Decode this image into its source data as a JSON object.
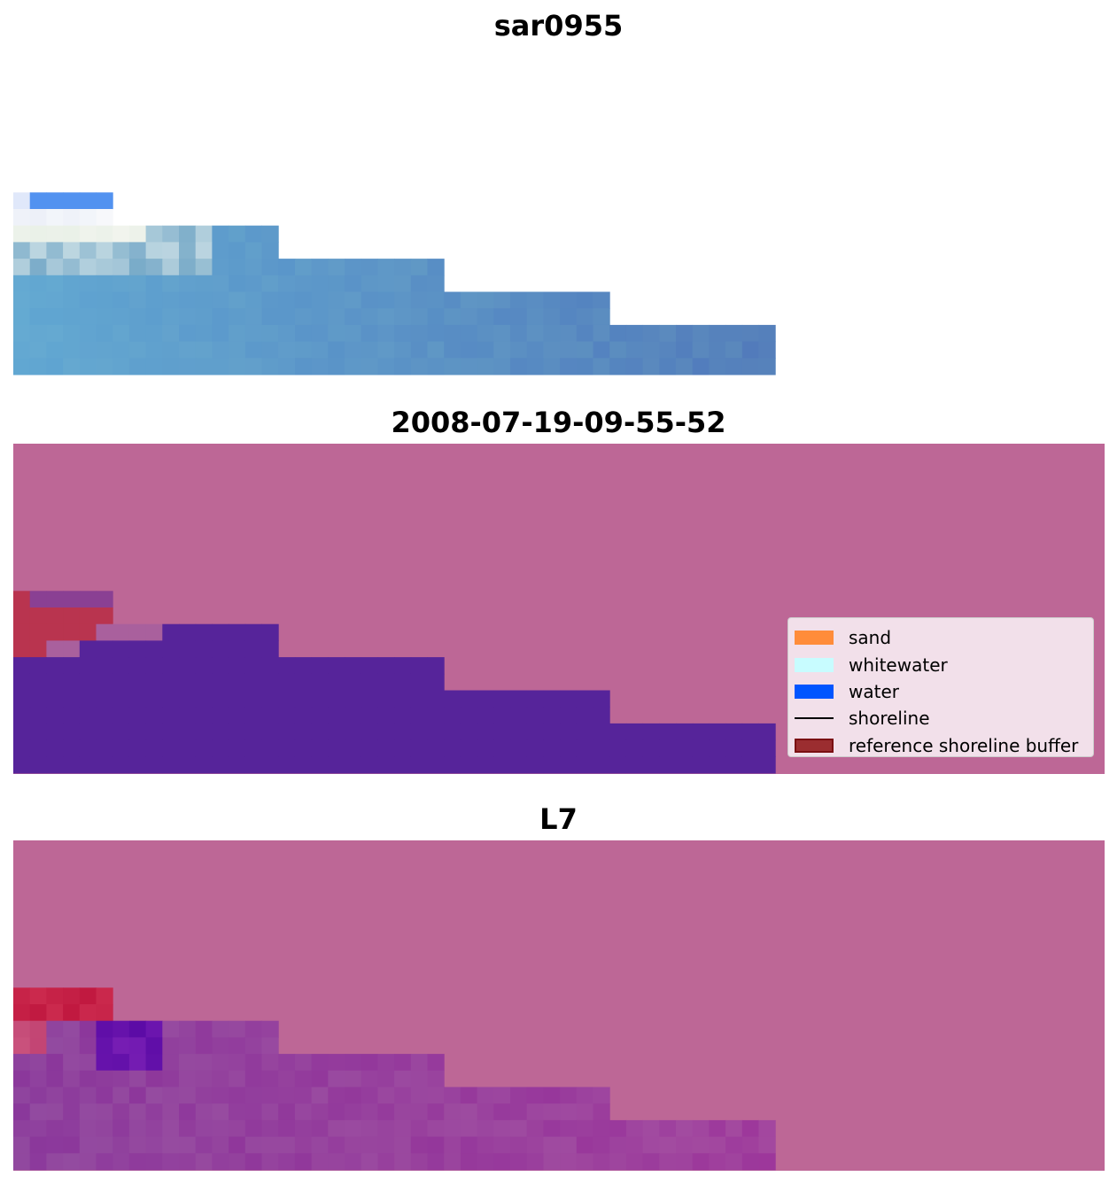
{
  "panels": {
    "top": {
      "title": "sar0955"
    },
    "middle": {
      "title": "2008-07-19-09-55-52"
    },
    "bottom": {
      "title": "L7"
    }
  },
  "legend": {
    "items": [
      {
        "label": "sand",
        "color": "#ff8c3a",
        "kind": "patch"
      },
      {
        "label": "whitewater",
        "color": "#c8fcff",
        "kind": "patch"
      },
      {
        "label": "water",
        "color": "#0055ff",
        "kind": "patch"
      },
      {
        "label": "shoreline",
        "color": "#000000",
        "kind": "line"
      },
      {
        "label": "reference shoreline buffer",
        "color": "#9b2d30",
        "edge": "#7a0f12",
        "kind": "patch"
      }
    ]
  },
  "colors": {
    "background": "#bd6796",
    "water_class": "#56249a",
    "buffer_red": "#b9344f"
  }
}
